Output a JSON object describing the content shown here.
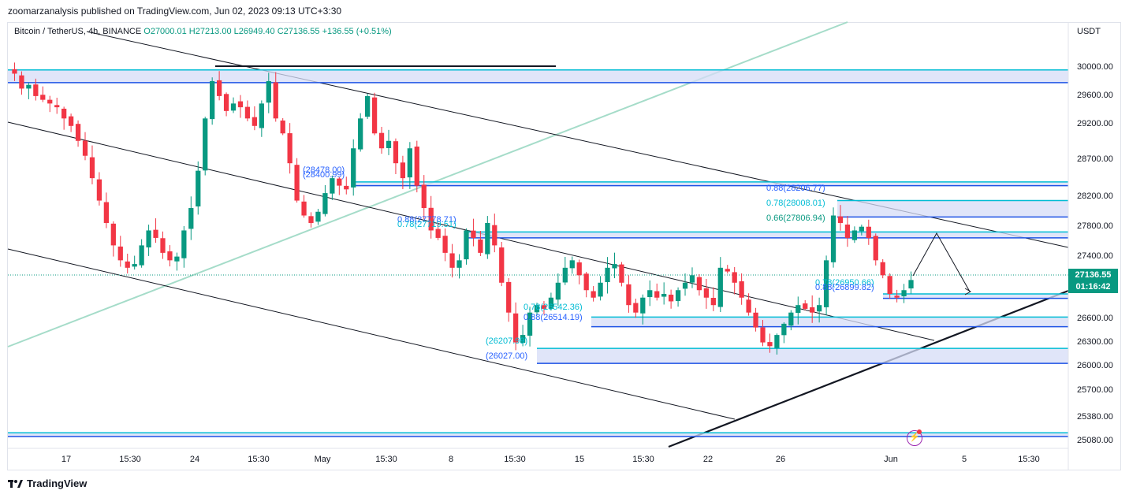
{
  "header": {
    "publisher_line": "zoomarzanalysis published on TradingView.com, Jun 02, 2023 09:13 UTC+3:30"
  },
  "legend": {
    "symbol": "Bitcoin / TetherUS, 4h, BINANCE",
    "open": "O27000.01",
    "high": "H27213.00",
    "low": "L26949.40",
    "close": "C27136.55",
    "change": "+136.55 (+0.51%)"
  },
  "currency": "USDT",
  "last_price": {
    "price": "27136.55",
    "countdown": "01:16:42"
  },
  "footer": {
    "brand": "TradingView"
  },
  "colors": {
    "up": "#089981",
    "down": "#f23645",
    "zone_fill": "#d6dcf7",
    "zone_line": "#1e53e5",
    "cyan": "#00bcd4",
    "fib_blue": "#2962ff",
    "fib_teal": "#089981"
  },
  "icons": [
    "tradingview-logo-icon",
    "flash-alert-icon"
  ],
  "chart_data": {
    "type": "candlestick",
    "symbol": "Bitcoin / TetherUS",
    "interval": "4h",
    "exchange": "BINANCE",
    "ylim": [
      25000,
      30200
    ],
    "y_ticks": [
      "25080.00",
      "25380.00",
      "25700.00",
      "26000.00",
      "26300.00",
      "26600.00",
      "27400.00",
      "27800.00",
      "28200.00",
      "28700.00",
      "29200.00",
      "29600.00",
      "30000.00"
    ],
    "x_ticks": [
      {
        "label": "17",
        "x": 84
      },
      {
        "label": "15:30",
        "x": 165
      },
      {
        "label": "24",
        "x": 247
      },
      {
        "label": "15:30",
        "x": 328
      },
      {
        "label": "May",
        "x": 409
      },
      {
        "label": "15:30",
        "x": 490
      },
      {
        "label": "8",
        "x": 572
      },
      {
        "label": "15:30",
        "x": 653
      },
      {
        "label": "15",
        "x": 735
      },
      {
        "label": "15:30",
        "x": 816
      },
      {
        "label": "22",
        "x": 898
      },
      {
        "label": "26",
        "x": 990
      },
      {
        "label": "Jun",
        "x": 1130
      },
      {
        "label": "5",
        "x": 1223
      },
      {
        "label": "15:30",
        "x": 1305
      }
    ],
    "ohlc_path": [
      29900,
      29700,
      29750,
      29600,
      29550,
      29500,
      29450,
      29300,
      29200,
      29000,
      28800,
      28500,
      28200,
      27900,
      27600,
      27400,
      27300,
      27350,
      27600,
      27800,
      27700,
      27500,
      27400,
      27450,
      27800,
      28100,
      28600,
      29300,
      29800,
      29600,
      29400,
      29500,
      29450,
      29300,
      29200,
      29500,
      29800,
      29300,
      29100,
      28700,
      28200,
      28000,
      27900,
      28050,
      28300,
      28500,
      28400,
      28350,
      28900,
      29300,
      29600,
      29100,
      28900,
      29000,
      28700,
      28500,
      28900,
      28400,
      28100,
      27800,
      27700,
      27500,
      27300,
      27400,
      27800,
      27700,
      27500,
      27900,
      27600,
      27100,
      26700,
      26300,
      26400,
      26700,
      26800,
      26750,
      26900,
      27100,
      27300,
      27400,
      27200,
      27000,
      26900,
      27100,
      27300,
      27350,
      27100,
      26800,
      26700,
      26900,
      27000,
      26900,
      26950,
      26850,
      27000,
      27100,
      27200,
      27000,
      26900,
      26800,
      27300,
      27250,
      27100,
      26900,
      26700,
      26500,
      26300,
      26250,
      26400,
      26550,
      26700,
      26800,
      26750,
      26700,
      26800,
      27400,
      28000,
      27900,
      27700,
      27800,
      27850,
      27700,
      27400,
      27200,
      26950,
      26900,
      27000,
      27136
    ],
    "zones": [
      {
        "top": 29950,
        "bottom": 29780,
        "label": ""
      },
      {
        "top": 28450,
        "bottom": 28400,
        "label": ""
      },
      {
        "top": 28200,
        "bottom": 27980,
        "label": ""
      },
      {
        "top": 27780,
        "bottom": 27700,
        "label": ""
      },
      {
        "top": 26950,
        "bottom": 26890,
        "label": ""
      },
      {
        "top": 26640,
        "bottom": 26510,
        "label": ""
      },
      {
        "top": 26220,
        "bottom": 26020,
        "label": ""
      },
      {
        "top": 25090,
        "bottom": 25040,
        "label": ""
      }
    ],
    "annotations": [
      {
        "text": "(28478.00)",
        "color": "#2962ff"
      },
      {
        "text": "(28400.99)",
        "color": "#2962ff"
      },
      {
        "text": "0.88(27778.71)",
        "color": "#2962ff"
      },
      {
        "text": "0.78(27719.51)",
        "color": "#00bcd4"
      },
      {
        "text": "0.88(28206.77)",
        "color": "#2962ff"
      },
      {
        "text": "0.78(28008.01)",
        "color": "#00bcd4"
      },
      {
        "text": "0.66(27806.94)",
        "color": "#089981"
      },
      {
        "text": "0.78(26950.66)",
        "color": "#00bcd4"
      },
      {
        "text": "0.88(26899.82)",
        "color": "#2962ff"
      },
      {
        "text": "0.78(26542.36)",
        "color": "#00bcd4"
      },
      {
        "text": "0.88(26514.19)",
        "color": "#2962ff"
      },
      {
        "text": "(26207.99)",
        "color": "#00bcd4"
      },
      {
        "text": "(26027.00)",
        "color": "#2962ff"
      }
    ]
  }
}
